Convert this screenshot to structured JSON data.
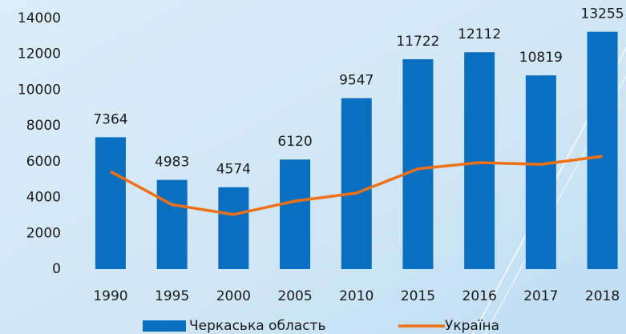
{
  "chart_data": {
    "type": "bar",
    "categories": [
      "1990",
      "1995",
      "2000",
      "2005",
      "2010",
      "2015",
      "2016",
      "2017",
      "2018"
    ],
    "series": [
      {
        "name": "Черкаська область",
        "type": "bar",
        "color": "#0b6fbf",
        "values": [
          7364,
          4983,
          4574,
          6120,
          9547,
          11722,
          12112,
          10819,
          13255
        ]
      },
      {
        "name": "Україна",
        "type": "line",
        "color": "#f07016",
        "values": [
          5450,
          3600,
          3050,
          3800,
          4250,
          5600,
          5950,
          5850,
          6300
        ]
      }
    ],
    "ylim": [
      0,
      14000
    ],
    "yticks": [
      0,
      2000,
      4000,
      6000,
      8000,
      10000,
      12000,
      14000
    ],
    "grid": false,
    "legend": "bottom"
  }
}
